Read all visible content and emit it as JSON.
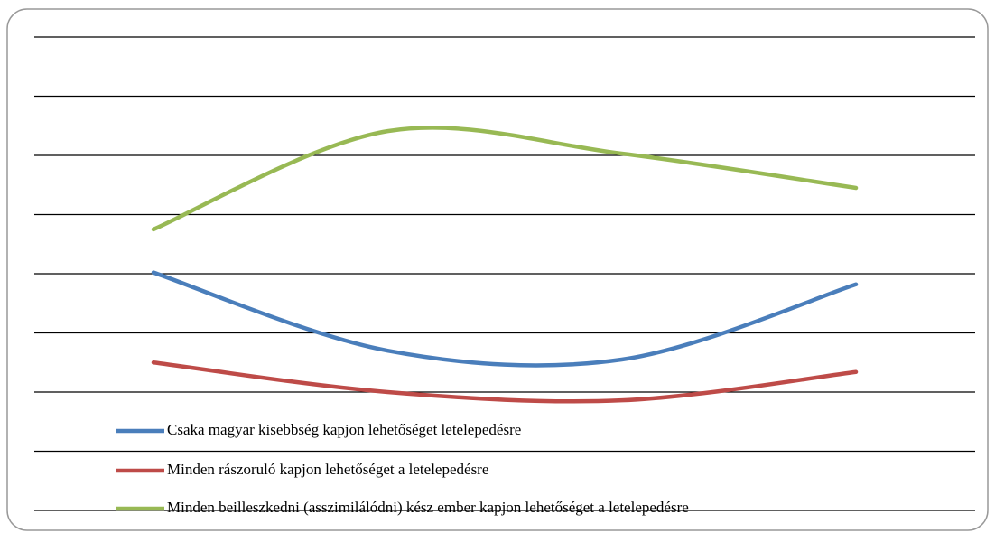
{
  "chart_data": {
    "type": "line",
    "categories": [
      null,
      null,
      null,
      null
    ],
    "series": [
      {
        "name": "Csaka magyar kisebbség kapjon lehetőséget letelepedésre",
        "color": "#4a7ebb",
        "values": [
          4.02,
          2.7,
          2.55,
          3.82
        ]
      },
      {
        "name": "Minden rászoruló kapjon lehetőséget a letelepedésre",
        "color": "#be4b48",
        "values": [
          2.5,
          2.0,
          1.86,
          2.34
        ]
      },
      {
        "name": "Minden beilleszkedni (asszimilálódni) kész ember kapjon lehetőséget a letelepedésre",
        "color": "#98b954",
        "values": [
          4.75,
          6.41,
          6.03,
          5.45
        ]
      }
    ],
    "ylim": [
      0,
      8
    ],
    "yticks": [
      0,
      1,
      2,
      3,
      4,
      5,
      6,
      7,
      8
    ],
    "grid": true,
    "smooth": true,
    "legend": "bottom"
  }
}
